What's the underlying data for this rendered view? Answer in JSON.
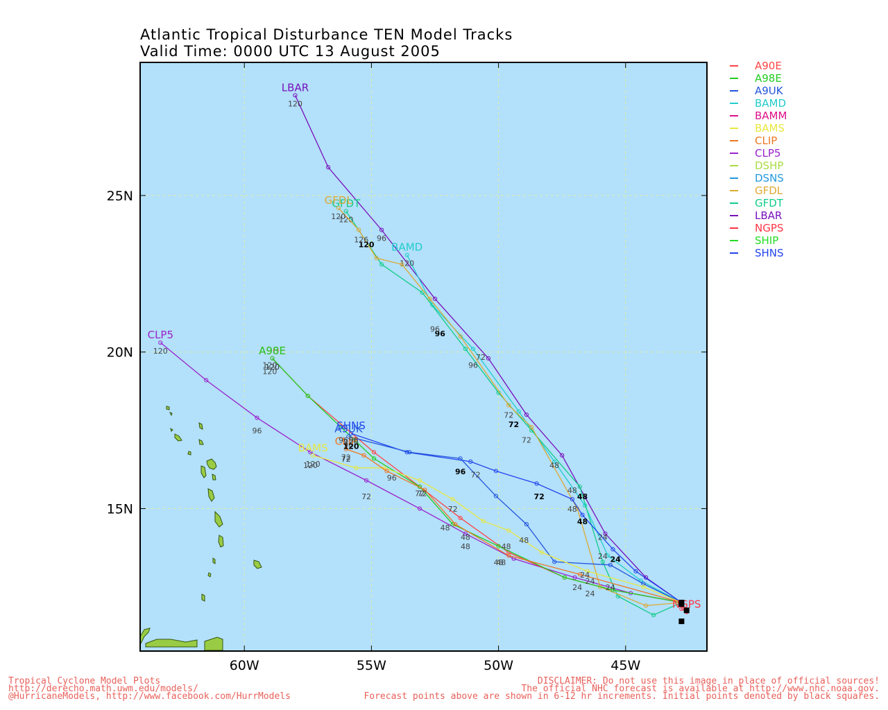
{
  "title_line1": "Atlantic Tropical Disturbance TEN Model Tracks",
  "title_line2": "Valid Time: 0000 UTC 13 August 2005",
  "colors": {
    "ocean": "#b3e0fa",
    "land": "#99cc44",
    "grid": "#ddeeaa"
  },
  "axes": {
    "lon_ticks": [
      {
        "v": -60,
        "label": "60W"
      },
      {
        "v": -55,
        "label": "55W"
      },
      {
        "v": -50,
        "label": "50W"
      },
      {
        "v": -45,
        "label": "45W"
      }
    ],
    "lat_ticks": [
      {
        "v": 15,
        "label": "15N"
      },
      {
        "v": 20,
        "label": "20N"
      },
      {
        "v": 25,
        "label": "25N"
      }
    ]
  },
  "legend": [
    {
      "name": "A90E",
      "color": "#ff4444"
    },
    {
      "name": "A98E",
      "color": "#22cc22"
    },
    {
      "name": "A9UK",
      "color": "#2255dd"
    },
    {
      "name": "BAMD",
      "color": "#22cccc"
    },
    {
      "name": "BAMM",
      "color": "#dd1188"
    },
    {
      "name": "BAMS",
      "color": "#e8e840"
    },
    {
      "name": "CLIP",
      "color": "#ee7722"
    },
    {
      "name": "CLP5",
      "color": "#9922cc"
    },
    {
      "name": "DSHP",
      "color": "#aadd44"
    },
    {
      "name": "DSNS",
      "color": "#2299dd"
    },
    {
      "name": "GFDL",
      "color": "#ddaa33"
    },
    {
      "name": "GFDT",
      "color": "#11cc88"
    },
    {
      "name": "LBAR",
      "color": "#7711bb"
    },
    {
      "name": "NGPS",
      "color": "#ff3344"
    },
    {
      "name": "SHIP",
      "color": "#22dd22"
    },
    {
      "name": "SHNS",
      "color": "#2244ee"
    }
  ],
  "tracks": [
    {
      "name": "LBAR",
      "color": "#7711bb",
      "label": "LBAR",
      "end_label": "120",
      "pts": [
        [
          -42.8,
          12
        ],
        [
          -44.2,
          12.8
        ],
        [
          -45.8,
          14.2
        ],
        [
          -47.5,
          16.7
        ],
        [
          -48.9,
          18
        ],
        [
          -50.4,
          19.8
        ],
        [
          -52.5,
          21.7
        ],
        [
          -54.6,
          23.9
        ],
        [
          -56.7,
          25.9
        ],
        [
          -58,
          28.2
        ]
      ]
    },
    {
      "name": "CLP5",
      "color": "#9922cc",
      "label": "CLP5",
      "end_label": "120",
      "pts": [
        [
          -42.8,
          12
        ],
        [
          -44.8,
          12.3
        ],
        [
          -47,
          12.8
        ],
        [
          -49.4,
          13.4
        ],
        [
          -51.3,
          14.2
        ],
        [
          -53.1,
          15
        ],
        [
          -55.2,
          15.9
        ],
        [
          -57.4,
          16.8
        ],
        [
          -59.5,
          17.9
        ],
        [
          -61.5,
          19.1
        ],
        [
          -63.3,
          20.3
        ]
      ],
      "tick_labels": [
        [
          "96",
          -59.5,
          17.4
        ],
        [
          "72",
          -55.2,
          15.3
        ],
        [
          "48",
          -51.3,
          13.7
        ]
      ]
    },
    {
      "name": "BAMD",
      "color": "#22cccc",
      "label": "BAMD",
      "end_label": "120",
      "pts": [
        [
          -42.8,
          12
        ],
        [
          -44.4,
          12.7
        ],
        [
          -45.7,
          13.5
        ],
        [
          -46.6,
          15.1
        ],
        [
          -47.8,
          16.5
        ],
        [
          -49.2,
          18.1
        ],
        [
          -51,
          20.1
        ],
        [
          -52.6,
          21.5
        ],
        [
          -53.6,
          23.1
        ]
      ]
    },
    {
      "name": "GFDT",
      "color": "#11cc88",
      "label": "GFDT",
      "end_label": "120",
      "pts": [
        [
          -42.8,
          12
        ],
        [
          -43.9,
          11.6
        ],
        [
          -45.3,
          12.2
        ],
        [
          -45.9,
          13.3
        ],
        [
          -46.8,
          15.7
        ],
        [
          -48.7,
          17.5
        ],
        [
          -50,
          18.7
        ],
        [
          -51.3,
          20.1
        ],
        [
          -53,
          21.9
        ],
        [
          -54.6,
          22.8
        ],
        [
          -56,
          24.5
        ]
      ]
    },
    {
      "name": "GFDL",
      "color": "#ddaa33",
      "label": "GFDL",
      "end_label": "120",
      "pts": [
        [
          -42.8,
          12
        ],
        [
          -44.2,
          11.9
        ],
        [
          -46,
          12.5
        ],
        [
          -46.9,
          15
        ],
        [
          -48.7,
          17.6
        ],
        [
          -49.6,
          18.3
        ],
        [
          -51.5,
          20.5
        ],
        [
          -52.7,
          21.7
        ],
        [
          -53.8,
          22.8
        ],
        [
          -54.8,
          23
        ],
        [
          -55.5,
          23.9
        ],
        [
          -56.3,
          24.6
        ]
      ]
    },
    {
      "name": "A90E",
      "color": "#ff4444",
      "label": "A90E",
      "end_label": "120",
      "pts": [
        [
          -42.8,
          12
        ],
        [
          -45.5,
          12.4
        ],
        [
          -47.4,
          12.8
        ],
        [
          -49.6,
          13.6
        ],
        [
          -51.5,
          14.7
        ],
        [
          -53.1,
          15.7
        ],
        [
          -54.9,
          16.8
        ],
        [
          -57.5,
          18.6
        ],
        [
          -58.9,
          19.8
        ]
      ]
    },
    {
      "name": "A98E",
      "color": "#22cc22",
      "label": "A98E",
      "end_label": "120",
      "pts": [
        [
          -42.8,
          12
        ],
        [
          -45.5,
          12.4
        ],
        [
          -47.4,
          12.8
        ],
        [
          -50,
          13.8
        ],
        [
          -51.8,
          14.5
        ],
        [
          -53.1,
          15.7
        ],
        [
          -54.9,
          16.6
        ],
        [
          -57.5,
          18.6
        ],
        [
          -58.9,
          19.8
        ]
      ]
    },
    {
      "name": "SHNS",
      "color": "#2244ee",
      "label": "SHNS",
      "end_label": "120",
      "pts": [
        [
          -42.8,
          12
        ],
        [
          -44.6,
          13
        ],
        [
          -45.5,
          13.7
        ],
        [
          -46.7,
          14.8
        ],
        [
          -47.1,
          15.3
        ],
        [
          -48.5,
          15.8
        ],
        [
          -50.1,
          16.2
        ],
        [
          -51.1,
          16.5
        ],
        [
          -53.6,
          16.8
        ],
        [
          -55.8,
          17.4
        ]
      ]
    },
    {
      "name": "A9UK",
      "color": "#2255dd",
      "label": "A9UK",
      "end_label": "96",
      "pts": [
        [
          -42.8,
          12
        ],
        [
          -44.3,
          12.6
        ],
        [
          -45.6,
          13.2
        ],
        [
          -47.8,
          13.3
        ],
        [
          -48.9,
          14.5
        ],
        [
          -50.1,
          15.4
        ],
        [
          -51.5,
          16.6
        ],
        [
          -53.5,
          16.8
        ],
        [
          -55.9,
          17.3
        ]
      ]
    },
    {
      "name": "BAMS",
      "color": "#e8e840",
      "label": "BAMS",
      "end_label": "120",
      "pts": [
        [
          -42.8,
          12
        ],
        [
          -44.3,
          12.5
        ],
        [
          -46.5,
          13
        ],
        [
          -48.3,
          13.6
        ],
        [
          -49.6,
          14.3
        ],
        [
          -50.6,
          14.6
        ],
        [
          -51.8,
          15.3
        ],
        [
          -53.1,
          15.9
        ],
        [
          -54.5,
          16.3
        ],
        [
          -55.6,
          16.3
        ],
        [
          -57.3,
          16.7
        ]
      ]
    },
    {
      "name": "CLIP",
      "color": "#ee7722",
      "label": "CLIP",
      "end_label": "72",
      "pts": [
        [
          -42.8,
          12
        ],
        [
          -46.8,
          12.9
        ],
        [
          -49.6,
          13.5
        ],
        [
          -51.7,
          14.5
        ],
        [
          -52.9,
          15.6
        ],
        [
          -54.4,
          16.2
        ],
        [
          -55.3,
          16.7
        ],
        [
          -56,
          16.9
        ]
      ]
    },
    {
      "name": "NGPS",
      "color": "#ff3344",
      "label": "NGPS",
      "end_label": "",
      "pts": [
        [
          -42.8,
          12
        ],
        [
          -42.8,
          11.8
        ],
        [
          -42.6,
          11.7
        ]
      ]
    }
  ],
  "hour_labels": [
    {
      "t": "72",
      "x": -50.7,
      "y": 19.75,
      "c": "#444"
    },
    {
      "t": "96",
      "x": -52.3,
      "y": 20.5,
      "c": "#000"
    },
    {
      "t": "96",
      "x": -52.5,
      "y": 20.65,
      "c": "#444"
    },
    {
      "t": "96",
      "x": -51,
      "y": 19.5,
      "c": "#444"
    },
    {
      "t": "96",
      "x": -54.6,
      "y": 23.55,
      "c": "#444"
    },
    {
      "t": "120",
      "x": -55.2,
      "y": 23.35,
      "c": "#000"
    },
    {
      "t": "126",
      "x": -55.4,
      "y": 23.5,
      "c": "#444"
    },
    {
      "t": "72",
      "x": -49.6,
      "y": 17.9,
      "c": "#444"
    },
    {
      "t": "72",
      "x": -49.4,
      "y": 17.6,
      "c": "#000"
    },
    {
      "t": "72",
      "x": -48.9,
      "y": 17.1,
      "c": "#444"
    },
    {
      "t": "48",
      "x": -47.8,
      "y": 16.3,
      "c": "#444"
    },
    {
      "t": "48",
      "x": -47.1,
      "y": 15.5,
      "c": "#444"
    },
    {
      "t": "48",
      "x": -46.7,
      "y": 15.3,
      "c": "#000"
    },
    {
      "t": "48",
      "x": -47.1,
      "y": 14.9,
      "c": "#444"
    },
    {
      "t": "48",
      "x": -46.7,
      "y": 14.5,
      "c": "#000"
    },
    {
      "t": "24",
      "x": -45.9,
      "y": 14,
      "c": "#444"
    },
    {
      "t": "24",
      "x": -45.4,
      "y": 13.3,
      "c": "#000"
    },
    {
      "t": "24",
      "x": -45.9,
      "y": 13.4,
      "c": "#444"
    },
    {
      "t": "24",
      "x": -45.6,
      "y": 12.4,
      "c": "#444"
    },
    {
      "t": "24",
      "x": -46.4,
      "y": 12.6,
      "c": "#444"
    },
    {
      "t": "24",
      "x": -46.6,
      "y": 12.8,
      "c": "#444"
    },
    {
      "t": "24",
      "x": -46.9,
      "y": 12.4,
      "c": "#444"
    },
    {
      "t": "24",
      "x": -46.4,
      "y": 12.2,
      "c": "#444"
    },
    {
      "t": "72",
      "x": -48.4,
      "y": 15.3,
      "c": "#000"
    },
    {
      "t": "96",
      "x": -51.5,
      "y": 16.1,
      "c": "#000"
    },
    {
      "t": "72",
      "x": -50.9,
      "y": 16,
      "c": "#444"
    },
    {
      "t": "48",
      "x": -49,
      "y": 13.9,
      "c": "#444"
    },
    {
      "t": "48",
      "x": -49.7,
      "y": 13.7,
      "c": "#444"
    },
    {
      "t": "48",
      "x": -50,
      "y": 13.2,
      "c": "#444"
    },
    {
      "t": "48",
      "x": -49.9,
      "y": 13.2,
      "c": "#444"
    },
    {
      "t": "48",
      "x": -51.3,
      "y": 14,
      "c": "#444"
    },
    {
      "t": "48",
      "x": -52.1,
      "y": 14.3,
      "c": "#444"
    },
    {
      "t": "72",
      "x": -51.8,
      "y": 14.9,
      "c": "#444"
    },
    {
      "t": "72",
      "x": -53.1,
      "y": 15.4,
      "c": "#444"
    },
    {
      "t": "72",
      "x": -53.0,
      "y": 15.4,
      "c": "#444"
    },
    {
      "t": "96",
      "x": -54.2,
      "y": 15.9,
      "c": "#444"
    },
    {
      "t": "72",
      "x": -56,
      "y": 16.5,
      "c": "#444"
    },
    {
      "t": "96",
      "x": -56.1,
      "y": 17.1,
      "c": "#444"
    },
    {
      "t": "120",
      "x": -55.8,
      "y": 16.9,
      "c": "#000"
    },
    {
      "t": "96",
      "x": -55.7,
      "y": 17.1,
      "c": "#444"
    },
    {
      "t": "120",
      "x": -59.0,
      "y": 19.3,
      "c": "#444"
    },
    {
      "t": "120",
      "x": -59,
      "y": 19.5,
      "c": "#444"
    },
    {
      "t": "120",
      "x": -57.4,
      "y": 16.3,
      "c": "#444"
    }
  ],
  "footer_left": [
    "Tropical Cyclone Model Plots",
    "http://derecho.math.uwm.edu/models/",
    "@HurricaneModels, http://www.facebook.com/HurrModels"
  ],
  "footer_right": [
    "DISCLAIMER: Do not use this image in place of official sources!",
    "The official NHC forecast is available at http://www.nhc.noaa.gov.",
    "Forecast points above are shown in 6-12 hr increments. Initial points denoted by black squares."
  ]
}
